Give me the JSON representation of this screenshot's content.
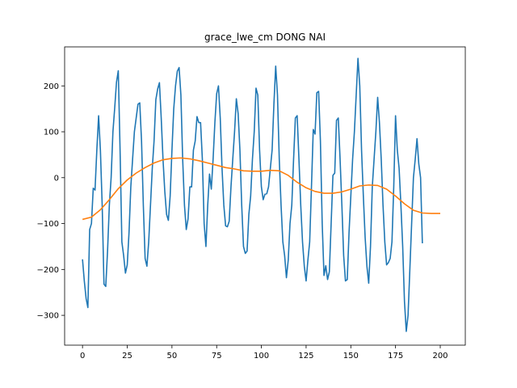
{
  "chart_data": {
    "type": "line",
    "title": "grace_lwe_cm DONG NAI",
    "xlabel": "",
    "ylabel": "",
    "xlim": [
      -10,
      214
    ],
    "ylim": [
      -365,
      285
    ],
    "x_ticks": [
      0,
      25,
      50,
      75,
      100,
      125,
      150,
      175,
      200
    ],
    "y_ticks": [
      -300,
      -200,
      -100,
      0,
      100,
      200
    ],
    "grid": false,
    "colors": {
      "series_1": "#1f77b4",
      "series_2": "#ff7f0e"
    },
    "series": [
      {
        "values": [
          [
            0,
            -178
          ],
          [
            1,
            -225
          ],
          [
            2,
            -263
          ],
          [
            3,
            -283
          ],
          [
            4,
            -113
          ],
          [
            5,
            -100
          ],
          [
            6,
            -23
          ],
          [
            7,
            -27
          ],
          [
            8,
            60
          ],
          [
            9,
            135
          ],
          [
            10,
            60
          ],
          [
            11,
            -60
          ],
          [
            12,
            -232
          ],
          [
            13,
            -237
          ],
          [
            14,
            -160
          ],
          [
            15,
            -60
          ],
          [
            16,
            0
          ],
          [
            17,
            100
          ],
          [
            18,
            152
          ],
          [
            19,
            208
          ],
          [
            20,
            233
          ],
          [
            21,
            60
          ],
          [
            22,
            -140
          ],
          [
            23,
            -170
          ],
          [
            24,
            -208
          ],
          [
            25,
            -190
          ],
          [
            26,
            -120
          ],
          [
            27,
            -20
          ],
          [
            28,
            40
          ],
          [
            29,
            100
          ],
          [
            30,
            130
          ],
          [
            31,
            160
          ],
          [
            32,
            163
          ],
          [
            33,
            80
          ],
          [
            34,
            -60
          ],
          [
            35,
            -176
          ],
          [
            36,
            -193
          ],
          [
            37,
            -140
          ],
          [
            38,
            -60
          ],
          [
            39,
            20
          ],
          [
            40,
            80
          ],
          [
            41,
            170
          ],
          [
            42,
            193
          ],
          [
            43,
            207
          ],
          [
            44,
            130
          ],
          [
            45,
            40
          ],
          [
            46,
            -30
          ],
          [
            47,
            -80
          ],
          [
            48,
            -93
          ],
          [
            49,
            -40
          ],
          [
            50,
            60
          ],
          [
            51,
            150
          ],
          [
            52,
            200
          ],
          [
            53,
            232
          ],
          [
            54,
            240
          ],
          [
            55,
            180
          ],
          [
            56,
            40
          ],
          [
            57,
            -60
          ],
          [
            58,
            -113
          ],
          [
            59,
            -90
          ],
          [
            60,
            -20
          ],
          [
            61,
            -20
          ],
          [
            62,
            60
          ],
          [
            63,
            80
          ],
          [
            64,
            133
          ],
          [
            65,
            120
          ],
          [
            66,
            120
          ],
          [
            67,
            40
          ],
          [
            68,
            -100
          ],
          [
            69,
            -150
          ],
          [
            70,
            -60
          ],
          [
            71,
            8
          ],
          [
            72,
            -25
          ],
          [
            73,
            40
          ],
          [
            74,
            120
          ],
          [
            75,
            183
          ],
          [
            76,
            200
          ],
          [
            77,
            130
          ],
          [
            78,
            20
          ],
          [
            79,
            -60
          ],
          [
            80,
            -105
          ],
          [
            81,
            -107
          ],
          [
            82,
            -95
          ],
          [
            83,
            -20
          ],
          [
            84,
            40
          ],
          [
            85,
            100
          ],
          [
            86,
            172
          ],
          [
            87,
            140
          ],
          [
            88,
            60
          ],
          [
            89,
            -60
          ],
          [
            90,
            -150
          ],
          [
            91,
            -165
          ],
          [
            92,
            -160
          ],
          [
            93,
            -80
          ],
          [
            94,
            -40
          ],
          [
            95,
            40
          ],
          [
            96,
            100
          ],
          [
            97,
            195
          ],
          [
            98,
            180
          ],
          [
            99,
            60
          ],
          [
            100,
            -20
          ],
          [
            101,
            -48
          ],
          [
            102,
            -36
          ],
          [
            103,
            -35
          ],
          [
            104,
            -20
          ],
          [
            105,
            20
          ],
          [
            106,
            60
          ],
          [
            107,
            160
          ],
          [
            108,
            243
          ],
          [
            109,
            180
          ],
          [
            110,
            40
          ],
          [
            111,
            -60
          ],
          [
            112,
            -140
          ],
          [
            113,
            -170
          ],
          [
            114,
            -218
          ],
          [
            115,
            -180
          ],
          [
            116,
            -100
          ],
          [
            117,
            -60
          ],
          [
            118,
            40
          ],
          [
            119,
            130
          ],
          [
            120,
            135
          ],
          [
            121,
            40
          ],
          [
            122,
            -60
          ],
          [
            123,
            -140
          ],
          [
            124,
            -193
          ],
          [
            125,
            -225
          ],
          [
            126,
            -180
          ],
          [
            127,
            -140
          ],
          [
            128,
            -20
          ],
          [
            129,
            105
          ],
          [
            130,
            95
          ],
          [
            131,
            185
          ],
          [
            132,
            188
          ],
          [
            133,
            80
          ],
          [
            134,
            -100
          ],
          [
            135,
            -213
          ],
          [
            136,
            -192
          ],
          [
            137,
            -222
          ],
          [
            138,
            -205
          ],
          [
            139,
            -100
          ],
          [
            140,
            5
          ],
          [
            141,
            10
          ],
          [
            142,
            125
          ],
          [
            143,
            130
          ],
          [
            144,
            40
          ],
          [
            145,
            -60
          ],
          [
            146,
            -170
          ],
          [
            147,
            -225
          ],
          [
            148,
            -222
          ],
          [
            149,
            -120
          ],
          [
            150,
            -40
          ],
          [
            151,
            40
          ],
          [
            152,
            100
          ],
          [
            153,
            180
          ],
          [
            154,
            260
          ],
          [
            155,
            200
          ],
          [
            156,
            60
          ],
          [
            157,
            -40
          ],
          [
            158,
            -130
          ],
          [
            159,
            -193
          ],
          [
            160,
            -230
          ],
          [
            161,
            -150
          ],
          [
            162,
            -20
          ],
          [
            163,
            40
          ],
          [
            164,
            100
          ],
          [
            165,
            175
          ],
          [
            166,
            120
          ],
          [
            167,
            40
          ],
          [
            168,
            -60
          ],
          [
            169,
            -140
          ],
          [
            170,
            -190
          ],
          [
            171,
            -185
          ],
          [
            172,
            -176
          ],
          [
            173,
            -140
          ],
          [
            174,
            -20
          ],
          [
            175,
            135
          ],
          [
            176,
            60
          ],
          [
            177,
            20
          ],
          [
            178,
            -60
          ],
          [
            179,
            -150
          ],
          [
            180,
            -270
          ],
          [
            181,
            -335
          ],
          [
            182,
            -300
          ],
          [
            183,
            -200
          ],
          [
            184,
            -100
          ],
          [
            185,
            0
          ],
          [
            186,
            40
          ],
          [
            187,
            85
          ],
          [
            188,
            30
          ],
          [
            189,
            0
          ],
          [
            190,
            -143
          ]
        ]
      },
      {
        "values": [
          [
            0,
            -91
          ],
          [
            5,
            -86
          ],
          [
            10,
            -70
          ],
          [
            15,
            -48
          ],
          [
            20,
            -24
          ],
          [
            25,
            -5
          ],
          [
            30,
            10
          ],
          [
            35,
            22
          ],
          [
            40,
            32
          ],
          [
            45,
            39
          ],
          [
            50,
            42
          ],
          [
            55,
            43
          ],
          [
            60,
            41
          ],
          [
            65,
            37
          ],
          [
            70,
            32
          ],
          [
            75,
            27
          ],
          [
            80,
            22
          ],
          [
            85,
            19
          ],
          [
            90,
            15
          ],
          [
            95,
            14
          ],
          [
            100,
            14
          ],
          [
            105,
            16
          ],
          [
            110,
            15
          ],
          [
            115,
            5
          ],
          [
            120,
            -10
          ],
          [
            125,
            -22
          ],
          [
            130,
            -30
          ],
          [
            135,
            -34
          ],
          [
            140,
            -34
          ],
          [
            145,
            -31
          ],
          [
            150,
            -25
          ],
          [
            155,
            -18
          ],
          [
            160,
            -16
          ],
          [
            165,
            -17
          ],
          [
            170,
            -25
          ],
          [
            175,
            -40
          ],
          [
            180,
            -57
          ],
          [
            185,
            -71
          ],
          [
            190,
            -77
          ],
          [
            195,
            -78
          ],
          [
            200,
            -78
          ]
        ]
      }
    ]
  }
}
